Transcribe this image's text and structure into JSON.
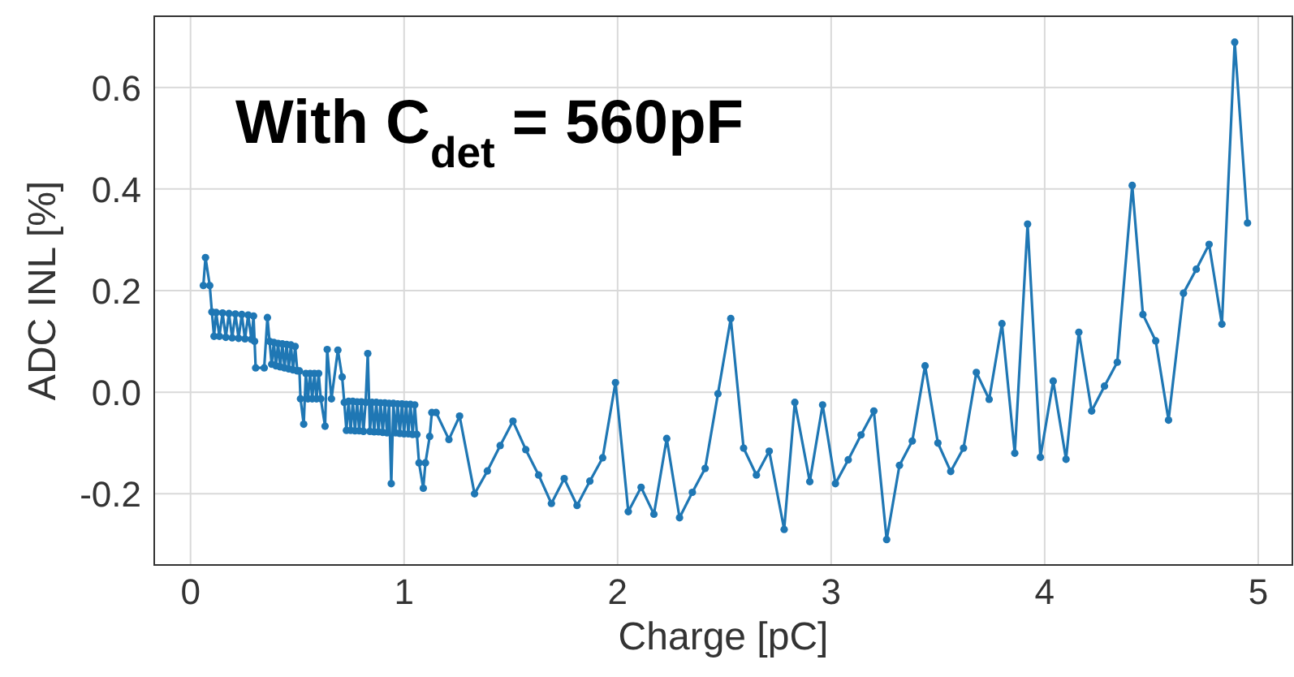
{
  "chart_data": {
    "type": "line",
    "xlabel": "Charge [pC]",
    "ylabel": "ADC INL [%]",
    "annotations": [
      "With C$_{det}$ = 560pF"
    ],
    "xlim": [
      -0.17,
      5.16
    ],
    "ylim": [
      -0.34,
      0.74
    ],
    "xticks": [
      0,
      1,
      2,
      3,
      4,
      5
    ],
    "yticks": [
      {
        "value": -0.2,
        "label": "-0.2"
      },
      {
        "value": 0,
        "label": "0.0"
      },
      {
        "value": 0.2,
        "label": "0.2"
      },
      {
        "value": 0.4,
        "label": "0.4"
      },
      {
        "value": 0.6,
        "label": "0.6"
      }
    ],
    "grid": true,
    "marker": "circle",
    "line_style": "solid",
    "series": [
      {
        "color": "#1f77b4",
        "x": [
          0.06,
          0.07,
          0.09,
          0.1,
          0.11,
          0.12,
          0.135,
          0.15,
          0.165,
          0.18,
          0.195,
          0.21,
          0.225,
          0.24,
          0.255,
          0.27,
          0.285,
          0.295,
          0.3,
          0.305,
          0.345,
          0.36,
          0.37,
          0.38,
          0.39,
          0.4,
          0.41,
          0.42,
          0.43,
          0.44,
          0.45,
          0.46,
          0.47,
          0.48,
          0.49,
          0.5,
          0.51,
          0.515,
          0.53,
          0.54,
          0.55,
          0.56,
          0.57,
          0.58,
          0.59,
          0.6,
          0.61,
          0.63,
          0.64,
          0.66,
          0.69,
          0.71,
          0.72,
          0.73,
          0.74,
          0.75,
          0.76,
          0.77,
          0.78,
          0.79,
          0.8,
          0.81,
          0.82,
          0.83,
          0.84,
          0.85,
          0.86,
          0.87,
          0.88,
          0.89,
          0.9,
          0.91,
          0.92,
          0.93,
          0.94,
          0.95,
          0.96,
          0.97,
          0.98,
          0.99,
          1.0,
          1.01,
          1.02,
          1.03,
          1.04,
          1.05,
          1.06,
          1.07,
          1.09,
          1.1,
          1.12,
          1.13,
          1.15,
          1.21,
          1.26,
          1.33,
          1.39,
          1.45,
          1.51,
          1.57,
          1.63,
          1.69,
          1.75,
          1.81,
          1.87,
          1.93,
          1.99,
          2.05,
          2.11,
          2.17,
          2.23,
          2.29,
          2.35,
          2.41,
          2.47,
          2.53,
          2.59,
          2.65,
          2.71,
          2.78,
          2.83,
          2.9,
          2.96,
          3.02,
          3.08,
          3.14,
          3.2,
          3.26,
          3.32,
          3.38,
          3.44,
          3.5,
          3.56,
          3.62,
          3.68,
          3.74,
          3.8,
          3.86,
          3.92,
          3.98,
          4.04,
          4.1,
          4.16,
          4.22,
          4.28,
          4.34,
          4.41,
          4.46,
          4.52,
          4.58,
          4.65,
          4.71,
          4.77,
          4.83,
          4.89,
          4.95
        ],
        "values": [
          0.21,
          0.265,
          0.21,
          0.158,
          0.11,
          0.157,
          0.11,
          0.156,
          0.108,
          0.155,
          0.107,
          0.154,
          0.106,
          0.153,
          0.105,
          0.152,
          0.104,
          0.15,
          0.1,
          0.048,
          0.048,
          0.147,
          0.1,
          0.055,
          0.098,
          0.052,
          0.096,
          0.05,
          0.095,
          0.048,
          0.094,
          0.046,
          0.093,
          0.044,
          0.09,
          0.042,
          0.042,
          -0.013,
          -0.063,
          0.037,
          -0.013,
          0.037,
          -0.013,
          0.037,
          -0.013,
          0.037,
          -0.013,
          -0.067,
          0.084,
          -0.013,
          0.083,
          0.03,
          -0.02,
          -0.075,
          -0.018,
          -0.075,
          -0.018,
          -0.076,
          -0.019,
          -0.076,
          -0.019,
          -0.077,
          -0.02,
          0.076,
          -0.077,
          -0.02,
          -0.078,
          -0.02,
          -0.078,
          -0.021,
          -0.079,
          -0.021,
          -0.08,
          -0.022,
          -0.18,
          -0.022,
          -0.08,
          -0.023,
          -0.081,
          -0.023,
          -0.082,
          -0.024,
          -0.082,
          -0.024,
          -0.083,
          -0.025,
          -0.083,
          -0.139,
          -0.189,
          -0.139,
          -0.087,
          -0.04,
          -0.04,
          -0.093,
          -0.047,
          -0.2,
          -0.155,
          -0.105,
          -0.057,
          -0.113,
          -0.163,
          -0.219,
          -0.17,
          -0.223,
          -0.175,
          -0.129,
          0.019,
          -0.235,
          -0.187,
          -0.24,
          -0.091,
          -0.247,
          -0.197,
          -0.15,
          -0.003,
          0.145,
          -0.11,
          -0.163,
          -0.116,
          -0.27,
          -0.02,
          -0.176,
          -0.025,
          -0.18,
          -0.133,
          -0.084,
          -0.037,
          -0.29,
          -0.144,
          -0.096,
          0.052,
          -0.1,
          -0.156,
          -0.11,
          0.039,
          -0.014,
          0.135,
          -0.12,
          0.331,
          -0.128,
          0.022,
          -0.132,
          0.118,
          -0.037,
          0.012,
          0.059,
          0.407,
          0.153,
          0.101,
          -0.055,
          0.195,
          0.242,
          0.291,
          0.134,
          0.689,
          0.333
        ]
      }
    ]
  }
}
